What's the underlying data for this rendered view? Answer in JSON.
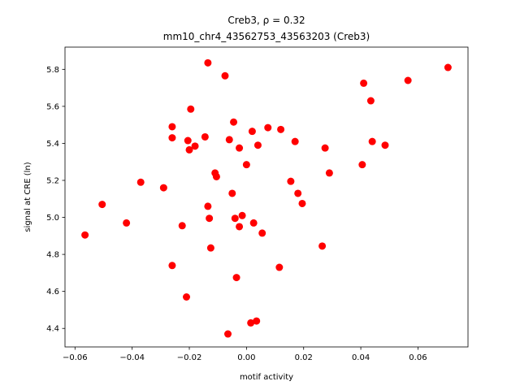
{
  "chart_data": {
    "type": "scatter",
    "title_line1": "Creb3, ρ = 0.32",
    "title_line2": "mm10_chr4_43562753_43563203 (Creb3)",
    "xlabel": "motif activity",
    "ylabel": "signal at CRE (ln)",
    "xlim": [
      -0.0635,
      0.0775
    ],
    "ylim": [
      4.3,
      5.92
    ],
    "xticks": [
      -0.06,
      -0.04,
      -0.02,
      0.0,
      0.02,
      0.04,
      0.06
    ],
    "xtick_labels": [
      "−0.06",
      "−0.04",
      "−0.02",
      "0.00",
      "0.02",
      "0.04",
      "0.06"
    ],
    "yticks": [
      4.4,
      4.6,
      4.8,
      5.0,
      5.2,
      5.4,
      5.6,
      5.8
    ],
    "ytick_labels": [
      "4.4",
      "4.6",
      "4.8",
      "5.0",
      "5.2",
      "5.4",
      "5.6",
      "5.8"
    ],
    "marker_color": "#ff0000",
    "grid": false,
    "points": [
      {
        "x": -0.0565,
        "y": 4.905
      },
      {
        "x": -0.0505,
        "y": 5.07
      },
      {
        "x": -0.042,
        "y": 4.97
      },
      {
        "x": -0.037,
        "y": 5.19
      },
      {
        "x": -0.029,
        "y": 5.16
      },
      {
        "x": -0.026,
        "y": 5.49
      },
      {
        "x": -0.026,
        "y": 5.43
      },
      {
        "x": -0.026,
        "y": 4.74
      },
      {
        "x": -0.0225,
        "y": 4.955
      },
      {
        "x": -0.021,
        "y": 4.57
      },
      {
        "x": -0.0205,
        "y": 5.415
      },
      {
        "x": -0.02,
        "y": 5.365
      },
      {
        "x": -0.0195,
        "y": 5.585
      },
      {
        "x": -0.018,
        "y": 5.385
      },
      {
        "x": -0.0145,
        "y": 5.435
      },
      {
        "x": -0.0135,
        "y": 5.835
      },
      {
        "x": -0.0135,
        "y": 5.06
      },
      {
        "x": -0.013,
        "y": 4.995
      },
      {
        "x": -0.0125,
        "y": 4.835
      },
      {
        "x": -0.011,
        "y": 5.24
      },
      {
        "x": -0.0105,
        "y": 5.22
      },
      {
        "x": -0.0075,
        "y": 5.765
      },
      {
        "x": -0.0065,
        "y": 4.37
      },
      {
        "x": -0.006,
        "y": 5.42
      },
      {
        "x": -0.005,
        "y": 5.13
      },
      {
        "x": -0.0045,
        "y": 5.515
      },
      {
        "x": -0.004,
        "y": 4.995
      },
      {
        "x": -0.0035,
        "y": 4.675
      },
      {
        "x": -0.0025,
        "y": 5.375
      },
      {
        "x": -0.0025,
        "y": 4.95
      },
      {
        "x": -0.0015,
        "y": 5.01
      },
      {
        "x": 0.0,
        "y": 5.285
      },
      {
        "x": 0.0015,
        "y": 4.43
      },
      {
        "x": 0.002,
        "y": 5.465
      },
      {
        "x": 0.0025,
        "y": 4.97
      },
      {
        "x": 0.0035,
        "y": 4.44
      },
      {
        "x": 0.004,
        "y": 5.39
      },
      {
        "x": 0.0055,
        "y": 4.915
      },
      {
        "x": 0.0075,
        "y": 5.485
      },
      {
        "x": 0.0115,
        "y": 4.73
      },
      {
        "x": 0.012,
        "y": 5.475
      },
      {
        "x": 0.0155,
        "y": 5.195
      },
      {
        "x": 0.017,
        "y": 5.41
      },
      {
        "x": 0.018,
        "y": 5.13
      },
      {
        "x": 0.0195,
        "y": 5.075
      },
      {
        "x": 0.0265,
        "y": 4.845
      },
      {
        "x": 0.0275,
        "y": 5.375
      },
      {
        "x": 0.029,
        "y": 5.24
      },
      {
        "x": 0.0405,
        "y": 5.285
      },
      {
        "x": 0.041,
        "y": 5.725
      },
      {
        "x": 0.0435,
        "y": 5.63
      },
      {
        "x": 0.044,
        "y": 5.41
      },
      {
        "x": 0.0485,
        "y": 5.39
      },
      {
        "x": 0.0565,
        "y": 5.74
      },
      {
        "x": 0.0705,
        "y": 5.81
      }
    ]
  }
}
